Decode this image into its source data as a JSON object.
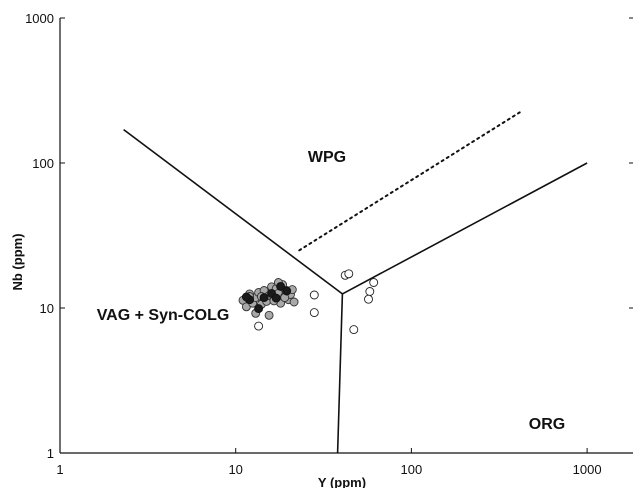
{
  "chart_data": {
    "type": "scatter",
    "xlabel": "Y (ppm)",
    "ylabel": "Nb (ppm)",
    "xscale": "log",
    "yscale": "log",
    "xlim": [
      1,
      2000
    ],
    "ylim": [
      1,
      1000
    ],
    "x_ticks": [
      "1",
      "10",
      "100",
      "1000"
    ],
    "y_ticks": [
      "1",
      "10",
      "100",
      "1000"
    ],
    "grid": false,
    "regions": [
      "WPG",
      "VAG + Syn-COLG",
      "ORG"
    ],
    "boundary_lines": [
      {
        "style": "solid",
        "points": [
          [
            2.3,
            170
          ],
          [
            40.5,
            12.5
          ]
        ]
      },
      {
        "style": "solid",
        "points": [
          [
            40.5,
            12.5
          ],
          [
            1000,
            100
          ]
        ]
      },
      {
        "style": "solid",
        "points": [
          [
            40.5,
            12.5
          ],
          [
            38,
            1
          ]
        ]
      },
      {
        "style": "dotted",
        "points": [
          [
            23,
            25
          ],
          [
            430,
            230
          ]
        ]
      }
    ],
    "points": {
      "white": [
        [
          42,
          16.8
        ],
        [
          44,
          17.2
        ],
        [
          61,
          15
        ],
        [
          58,
          13
        ],
        [
          57,
          11.5
        ],
        [
          28,
          12.3
        ],
        [
          28,
          9.3
        ],
        [
          47,
          7.1
        ],
        [
          13.5,
          7.5
        ]
      ],
      "gray": [
        [
          11,
          11.3
        ],
        [
          11.5,
          10.2
        ],
        [
          12,
          12.5
        ],
        [
          12.5,
          10.8
        ],
        [
          13,
          11.8
        ],
        [
          13.5,
          12.8
        ],
        [
          14,
          10.6
        ],
        [
          14.5,
          13.2
        ],
        [
          15,
          11.1
        ],
        [
          15.5,
          12.2
        ],
        [
          16,
          14
        ],
        [
          16.5,
          11.5
        ],
        [
          17,
          13.6
        ],
        [
          17.5,
          12.6
        ],
        [
          18,
          10.8
        ],
        [
          18.5,
          14.5
        ],
        [
          19,
          12
        ],
        [
          19.5,
          13.2
        ],
        [
          20,
          11.4
        ],
        [
          20.5,
          12.4
        ],
        [
          21,
          13.4
        ],
        [
          21.5,
          11
        ],
        [
          13,
          9.2
        ],
        [
          15.5,
          8.9
        ],
        [
          16.5,
          11.2
        ],
        [
          14,
          12
        ],
        [
          17.5,
          15
        ],
        [
          19,
          11.8
        ],
        [
          12,
          12
        ]
      ],
      "black": [
        [
          12,
          11.4
        ],
        [
          13.5,
          9.9
        ],
        [
          16,
          12.6
        ],
        [
          17,
          11.7
        ],
        [
          18,
          14.1
        ],
        [
          19.5,
          13.1
        ],
        [
          14.5,
          11.8
        ],
        [
          11.5,
          11.9
        ]
      ]
    }
  }
}
